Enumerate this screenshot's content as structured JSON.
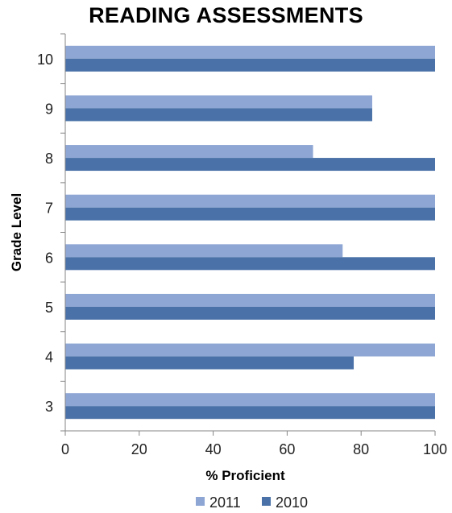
{
  "chart_data": {
    "type": "bar",
    "orientation": "horizontal",
    "title": "READING ASSESSMENTS",
    "xlabel": "% Proficient",
    "ylabel": "Grade Level",
    "xlim": [
      0,
      100
    ],
    "xticks": [
      0,
      20,
      40,
      60,
      80,
      100
    ],
    "grid": false,
    "legend_position": "bottom",
    "categories": [
      "10",
      "9",
      "8",
      "7",
      "6",
      "5",
      "4",
      "3"
    ],
    "series": [
      {
        "name": "2011",
        "color": "#8ea6d4",
        "values": [
          100,
          83,
          67,
          100,
          75,
          100,
          100,
          100
        ]
      },
      {
        "name": "2010",
        "color": "#4a72a8",
        "values": [
          100,
          83,
          100,
          100,
          100,
          100,
          78,
          100
        ]
      }
    ]
  }
}
